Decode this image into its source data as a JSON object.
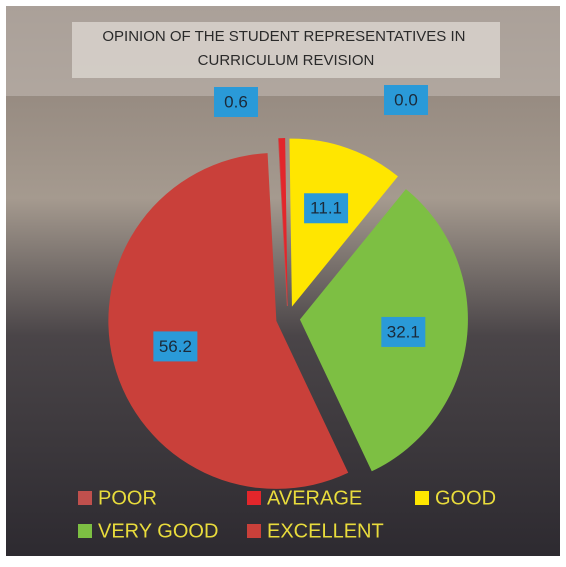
{
  "chart_data": {
    "type": "pie",
    "title": "OPINION OF THE STUDENT REPRESENTATIVES IN CURRICULUM REVISION",
    "categories": [
      "POOR",
      "AVERAGE",
      "GOOD",
      "VERY GOOD",
      "EXCELLENT"
    ],
    "values": [
      0.0,
      0.6,
      11.1,
      32.1,
      56.2
    ],
    "value_labels": [
      "0.0",
      "0.6",
      "11.1",
      "32.1",
      "56.2"
    ],
    "colors": [
      "#c0504d",
      "#e3262b",
      "#ffe600",
      "#7dbf43",
      "#c9403a"
    ]
  }
}
